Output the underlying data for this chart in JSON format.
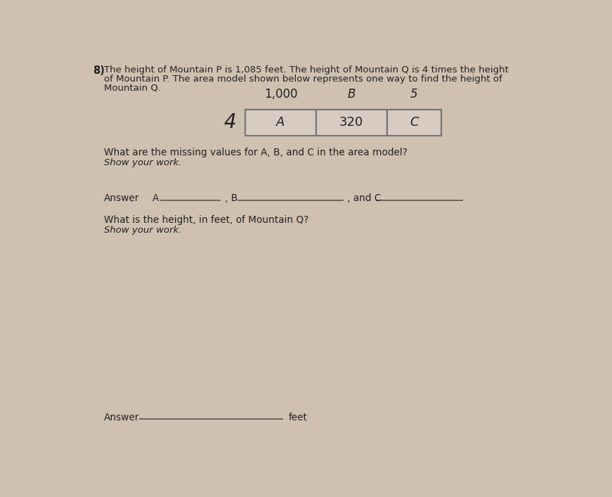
{
  "bg_color": "#cfc0b0",
  "title_number": "8)",
  "problem_text_line1": "The height of Mountain P is 1,085 feet. The height of Mountain Q is 4 times the height",
  "problem_text_line2": "of Mountain P. The area model shown below represents one way to find the height of",
  "problem_text_line3": "Mountain Q.",
  "top_labels": [
    "1,000",
    "B",
    "5"
  ],
  "left_label": "4",
  "cell_labels": [
    "A",
    "320",
    "C"
  ],
  "question1": "What are the missing values for A, B, and C in the area model?",
  "show_work1": "Show your work.",
  "answer_label": "Answer",
  "question2": "What is the height, in feet, of Mountain Q?",
  "show_work2": "Show your work.",
  "answer_label2": "Answer",
  "feet_label": "feet",
  "font_color": "#222222",
  "cell_face_color": "#d8ccc2",
  "line_color": "#555555"
}
